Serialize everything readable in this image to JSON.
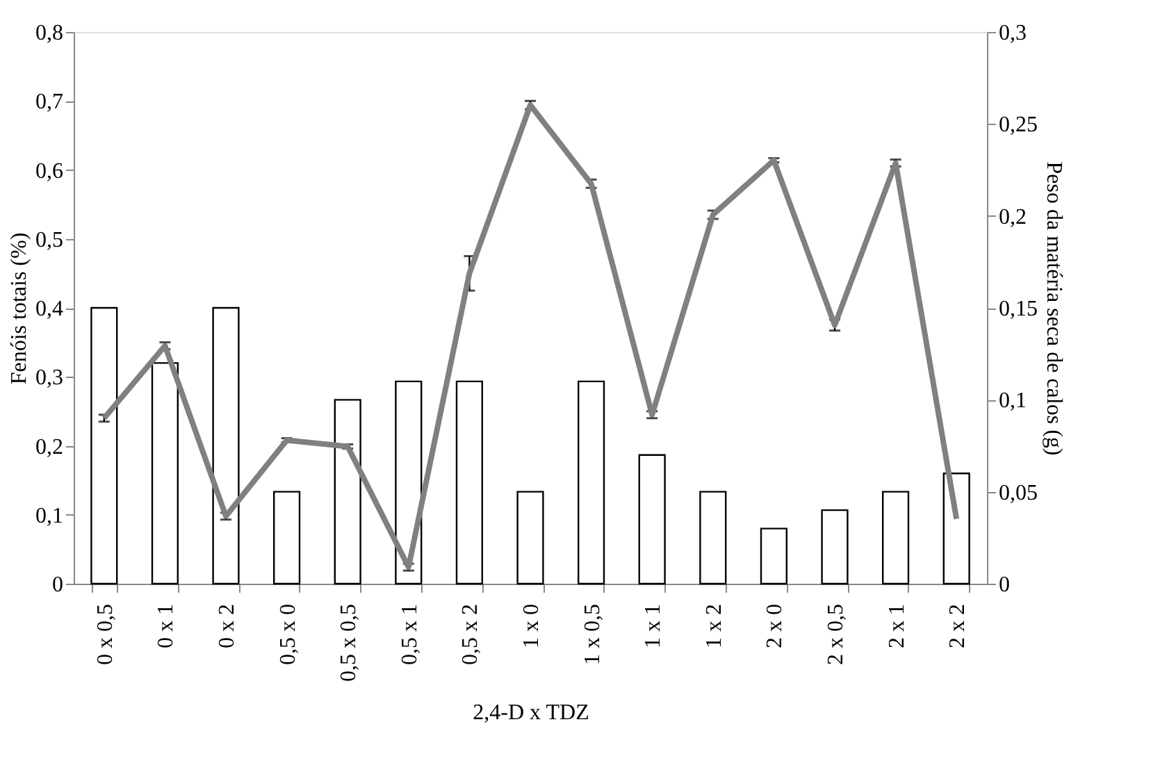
{
  "chart_data": {
    "type": "bar",
    "xlabel": "2,4-D x TDZ",
    "ylabel": "Fenóis totais (%)",
    "y2label": "Peso da matéria seca de calos (g)",
    "categories": [
      "0 x 0,5",
      "0 x 1",
      "0 x 2",
      "0,5 x 0",
      "0,5 x 0,5",
      "0,5 x 1",
      "0,5 x 2",
      "1 x 0",
      "1 x 0,5",
      "1 x 1",
      "1 x 2",
      "2 x 0",
      "2 x 0,5",
      "2 x 1",
      "2 x 2"
    ],
    "series": [
      {
        "axis": "y2",
        "color": "#ffffff",
        "values": [
          0.15,
          0.12,
          0.15,
          0.05,
          0.1,
          0.11,
          0.11,
          0.05,
          0.11,
          0.07,
          0.05,
          0.03,
          0.04,
          0.05,
          0.06
        ]
      },
      {
        "type": "line",
        "color": "#808080",
        "values": [
          0.24,
          0.345,
          0.098,
          0.208,
          0.199,
          0.024,
          0.45,
          0.694,
          0.58,
          0.245,
          0.535,
          0.614,
          0.375,
          0.61,
          0.094
        ],
        "errors": [
          0.005,
          0.005,
          0.005,
          0.003,
          0.003,
          0.005,
          0.025,
          0.006,
          0.006,
          0.005,
          0.006,
          0.003,
          0.008,
          0.005,
          null
        ]
      }
    ],
    "ylim": [
      0,
      0.8
    ],
    "yticks": [
      {
        "value": 0,
        "label": "0"
      },
      {
        "value": 0.1,
        "label": "0,1"
      },
      {
        "value": 0.2,
        "label": "0,2"
      },
      {
        "value": 0.3,
        "label": "0,3"
      },
      {
        "value": 0.4,
        "label": "0,4"
      },
      {
        "value": 0.5,
        "label": "0,5"
      },
      {
        "value": 0.6,
        "label": "0,6"
      },
      {
        "value": 0.7,
        "label": "0,7"
      },
      {
        "value": 0.8,
        "label": "0,8"
      }
    ],
    "y2lim": [
      0,
      0.3
    ],
    "y2ticks": [
      {
        "value": 0,
        "label": "0"
      },
      {
        "value": 0.05,
        "label": "0,05"
      },
      {
        "value": 0.1,
        "label": "0,1"
      },
      {
        "value": 0.15,
        "label": "0,15"
      },
      {
        "value": 0.2,
        "label": "0,2"
      },
      {
        "value": 0.25,
        "label": "0,25"
      },
      {
        "value": 0.3,
        "label": "0,3"
      }
    ],
    "grid": false
  }
}
